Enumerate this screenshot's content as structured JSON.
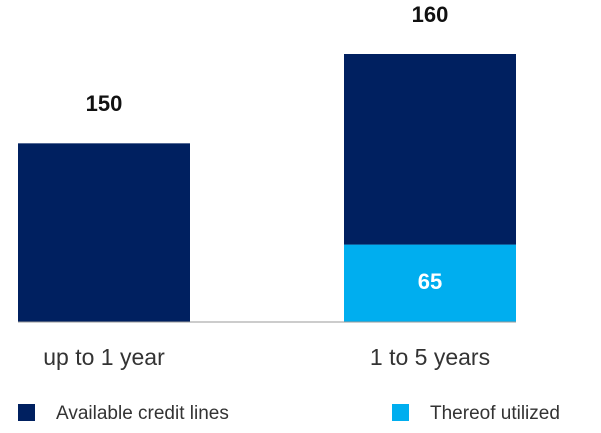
{
  "chart_data": {
    "type": "stacked_bar",
    "categories": [
      "up to 1 year",
      "1 to 5 years"
    ],
    "series": [
      {
        "name": "Thereof utilized",
        "color": "#00aeef",
        "values": [
          0,
          65
        ]
      },
      {
        "name": "Available credit lines",
        "color": "#002060",
        "values": [
          150,
          160
        ]
      }
    ],
    "legend_order": [
      1,
      0
    ]
  }
}
